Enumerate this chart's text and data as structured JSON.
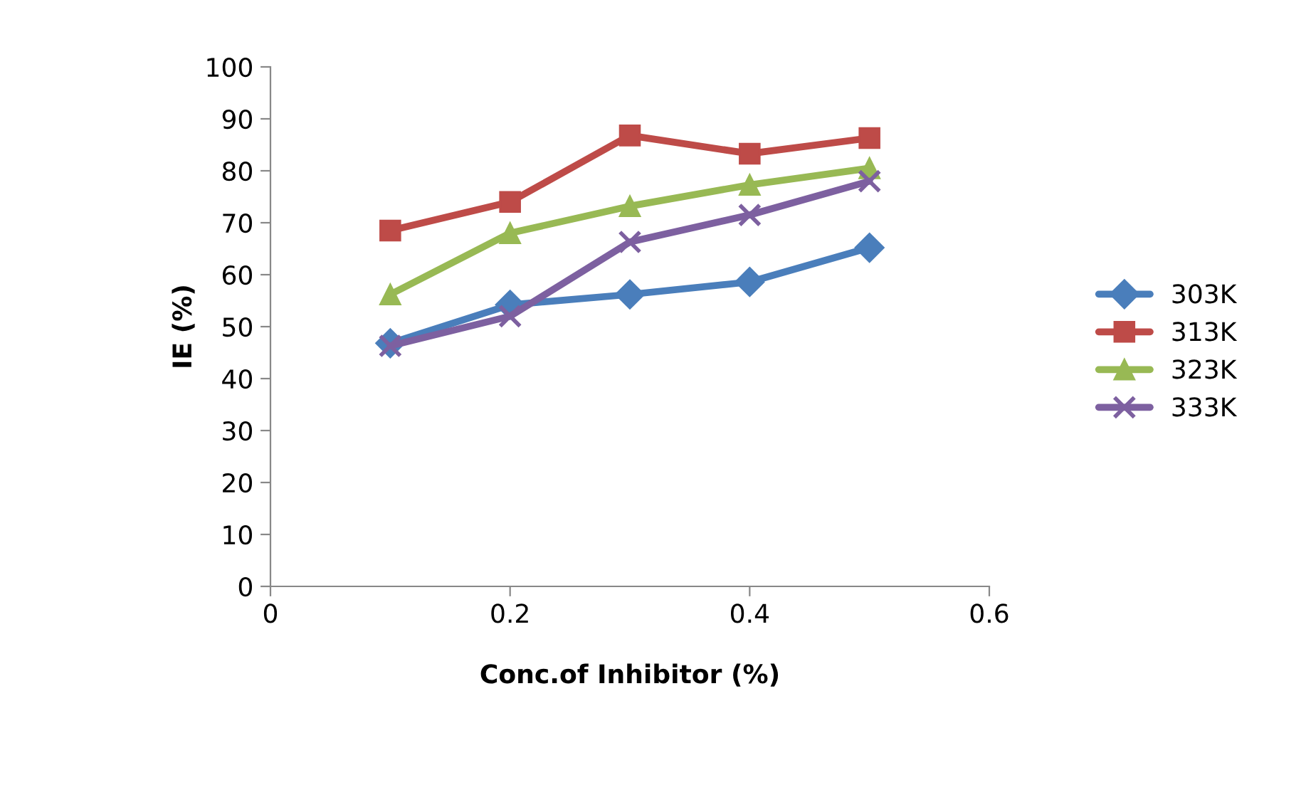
{
  "chart_data": {
    "type": "line",
    "xlabel": "Conc.of Inhibitor (%)",
    "ylabel": "IE (%)",
    "x": [
      0.1,
      0.2,
      0.3,
      0.4,
      0.5
    ],
    "series": [
      {
        "name": "303K",
        "color": "#4a7ebb",
        "marker": "diamond",
        "values": [
          46.8,
          54.2,
          56.2,
          58.6,
          65.2
        ]
      },
      {
        "name": "313K",
        "color": "#be4b48",
        "marker": "square",
        "values": [
          68.5,
          74,
          86.8,
          83.3,
          86.3
        ]
      },
      {
        "name": "323K",
        "color": "#98b954",
        "marker": "triangle",
        "values": [
          56.2,
          68,
          73.2,
          77.3,
          80.5
        ]
      },
      {
        "name": "333K",
        "color": "#7d60a0",
        "marker": "cross",
        "values": [
          46.3,
          52,
          66.3,
          71.5,
          78
        ]
      }
    ],
    "xlim": [
      0,
      0.6
    ],
    "xticks": [
      0,
      0.2,
      0.4,
      0.6
    ],
    "ylim": [
      0,
      100
    ],
    "yticks": [
      0,
      10,
      20,
      30,
      40,
      50,
      60,
      70,
      80,
      90,
      100
    ],
    "grid": false,
    "legend": "right",
    "line_style": "solid"
  }
}
